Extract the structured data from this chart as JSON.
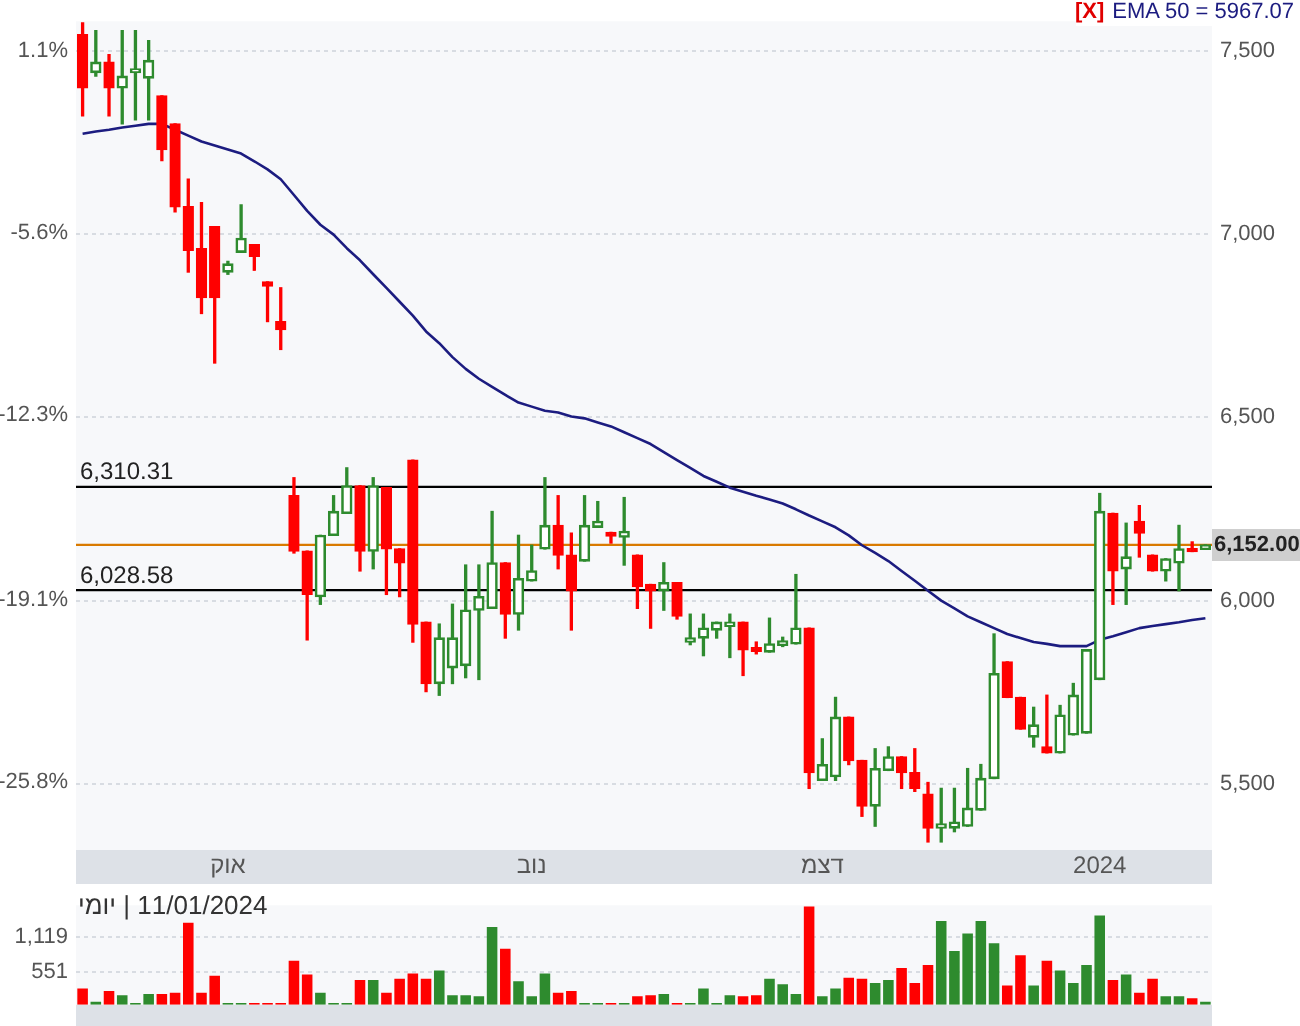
{
  "chart_data": [
    {
      "type": "candlestick",
      "categories": [
        null,
        null,
        null,
        null,
        null,
        null,
        null,
        null,
        null,
        null,
        null,
        "אוק",
        null,
        null,
        null,
        null,
        null,
        null,
        null,
        null,
        null,
        null,
        null,
        null,
        null,
        null,
        null,
        null,
        null,
        null,
        null,
        null,
        null,
        null,
        "נוב",
        null,
        null,
        null,
        null,
        null,
        null,
        null,
        null,
        null,
        null,
        null,
        null,
        null,
        null,
        null,
        null,
        null,
        null,
        null,
        null,
        null,
        "דצמ",
        null,
        null,
        null,
        null,
        null,
        null,
        null,
        null,
        null,
        null,
        null,
        null,
        null,
        null,
        null,
        null,
        null,
        null,
        null,
        null,
        "2024",
        null,
        null,
        null,
        null,
        null,
        null,
        null,
        null
      ],
      "ohlc": [
        [
          7543,
          7575,
          7322,
          7398
        ],
        [
          7440,
          7554,
          7430,
          7468
        ],
        [
          7468,
          7489,
          7322,
          7398
        ],
        [
          7398,
          7554,
          7300,
          7430
        ],
        [
          7440,
          7554,
          7311,
          7450
        ],
        [
          7425,
          7527,
          7311,
          7473
        ],
        [
          7376,
          7376,
          7200,
          7230
        ],
        [
          7300,
          7300,
          7060,
          7074
        ],
        [
          7074,
          7149,
          6896,
          6955
        ],
        [
          6960,
          7085,
          6783,
          6826
        ],
        [
          7020,
          7020,
          6648,
          6826
        ],
        [
          6896,
          6925,
          6890,
          6918
        ],
        [
          6950,
          7079,
          6950,
          6988
        ],
        [
          6971,
          6971,
          6901,
          6939
        ],
        [
          6869,
          6869,
          6761,
          6858
        ],
        [
          6761,
          6853,
          6685,
          6739
        ],
        [
          6286,
          6335,
          6130,
          6135
        ],
        [
          6135,
          6135,
          5893,
          6017
        ],
        [
          6011,
          6178,
          5990,
          6178
        ],
        [
          6178,
          6286,
          6178,
          6243
        ],
        [
          6238,
          6362,
          6238,
          6313
        ],
        [
          6313,
          6313,
          6081,
          6135
        ],
        [
          6135,
          6335,
          6087,
          6313
        ],
        [
          6308,
          6308,
          6017,
          6141
        ],
        [
          6141,
          6141,
          6011,
          6103
        ],
        [
          6383,
          6383,
          5887,
          5936
        ],
        [
          5941,
          5941,
          5752,
          5774
        ],
        [
          5774,
          5936,
          5742,
          5898
        ],
        [
          5817,
          5990,
          5774,
          5898
        ],
        [
          5823,
          6097,
          5790,
          5974
        ],
        [
          5974,
          6097,
          5785,
          6011
        ],
        [
          5979,
          6243,
          5979,
          6103
        ],
        [
          6103,
          6103,
          5898,
          5963
        ],
        [
          5963,
          6178,
          5920,
          6060
        ],
        [
          6054,
          6151,
          6054,
          6081
        ],
        [
          6141,
          6335,
          6141,
          6205
        ],
        [
          6205,
          6286,
          6087,
          6124
        ],
        [
          6124,
          6184,
          5920,
          6027
        ],
        [
          6108,
          6286,
          6108,
          6205
        ],
        [
          6200,
          6270,
          6200,
          6216
        ],
        [
          6186,
          6186,
          6157,
          6176
        ],
        [
          6173,
          6281,
          6097,
          6189
        ],
        [
          6124,
          6124,
          5979,
          6038
        ],
        [
          6044,
          6044,
          5925,
          6027
        ],
        [
          6027,
          6103,
          5974,
          6049
        ],
        [
          6049,
          6049,
          5950,
          5958
        ],
        [
          5887,
          5963,
          5880,
          5898
        ],
        [
          5898,
          5963,
          5850,
          5925
        ],
        [
          5920,
          5941,
          5898,
          5941
        ],
        [
          5930,
          5963,
          5845,
          5941
        ],
        [
          5941,
          5941,
          5796,
          5866
        ],
        [
          5872,
          5887,
          5855,
          5862
        ],
        [
          5860,
          5952,
          5860,
          5882
        ],
        [
          5878,
          5900,
          5875,
          5890
        ],
        [
          5882,
          6071,
          5882,
          5925
        ],
        [
          5925,
          5925,
          5488,
          5531
        ],
        [
          5510,
          5623,
          5510,
          5553
        ],
        [
          5520,
          5736,
          5510,
          5682
        ],
        [
          5682,
          5682,
          5553,
          5564
        ],
        [
          5564,
          5564,
          5412,
          5440
        ],
        [
          5440,
          5596,
          5385,
          5542
        ],
        [
          5537,
          5601,
          5537,
          5574
        ],
        [
          5574,
          5574,
          5488,
          5531
        ],
        [
          5531,
          5596,
          5480,
          5488
        ],
        [
          5472,
          5504,
          5342,
          5380
        ],
        [
          5380,
          5488,
          5342,
          5391
        ],
        [
          5380,
          5488,
          5370,
          5396
        ],
        [
          5385,
          5542,
          5385,
          5434
        ],
        [
          5429,
          5553,
          5429,
          5515
        ],
        [
          5515,
          5909,
          5515,
          5801
        ],
        [
          5833,
          5833,
          5736,
          5736
        ],
        [
          5736,
          5736,
          5650,
          5650
        ],
        [
          5628,
          5709,
          5601,
          5661
        ],
        [
          5601,
          5742,
          5585,
          5585
        ],
        [
          5585,
          5714,
          5585,
          5688
        ],
        [
          5634,
          5774,
          5634,
          5742
        ],
        [
          5639,
          5866,
          5639,
          5866
        ],
        [
          5785,
          6292,
          5785,
          6243
        ],
        [
          6238,
          6238,
          5990,
          6081
        ],
        [
          6087,
          6211,
          5990,
          6119
        ],
        [
          6216,
          6259,
          6119,
          6184
        ],
        [
          6124,
          6124,
          6081,
          6081
        ],
        [
          6081,
          6114,
          6054,
          6114
        ],
        [
          6103,
          6205,
          6027,
          6141
        ],
        [
          6142,
          6160,
          6134,
          6134
        ],
        [
          6140,
          6152,
          6140,
          6152
        ]
      ],
      "colors": [
        "#ff0000",
        "#2e8b2e",
        "#ff0000",
        "#2e8b2e",
        "#2e8b2e",
        "#2e8b2e",
        "#ff0000",
        "#ff0000",
        "#ff0000",
        "#ff0000",
        "#ff0000",
        "#2e8b2e",
        "#2e8b2e",
        "#ff0000",
        "#ff0000",
        "#ff0000",
        "#ff0000",
        "#ff0000",
        "#2e8b2e",
        "#2e8b2e",
        "#2e8b2e",
        "#ff0000",
        "#2e8b2e",
        "#ff0000",
        "#ff0000",
        "#ff0000",
        "#ff0000",
        "#2e8b2e",
        "#2e8b2e",
        "#2e8b2e",
        "#2e8b2e",
        "#2e8b2e",
        "#ff0000",
        "#2e8b2e",
        "#2e8b2e",
        "#2e8b2e",
        "#ff0000",
        "#ff0000",
        "#2e8b2e",
        "#2e8b2e",
        "#ff0000",
        "#2e8b2e",
        "#ff0000",
        "#ff0000",
        "#2e8b2e",
        "#ff0000",
        "#2e8b2e",
        "#2e8b2e",
        "#2e8b2e",
        "#2e8b2e",
        "#ff0000",
        "#ff0000",
        "#2e8b2e",
        "#2e8b2e",
        "#2e8b2e",
        "#ff0000",
        "#2e8b2e",
        "#2e8b2e",
        "#ff0000",
        "#ff0000",
        "#2e8b2e",
        "#2e8b2e",
        "#ff0000",
        "#ff0000",
        "#ff0000",
        "#2e8b2e",
        "#2e8b2e",
        "#2e8b2e",
        "#2e8b2e",
        "#2e8b2e",
        "#ff0000",
        "#ff0000",
        "#2e8b2e",
        "#ff0000",
        "#2e8b2e",
        "#2e8b2e",
        "#2e8b2e",
        "#2e8b2e",
        "#ff0000",
        "#2e8b2e",
        "#ff0000",
        "#ff0000",
        "#2e8b2e",
        "#2e8b2e",
        "#ff0000",
        "#2e8b2e"
      ],
      "series": [
        {
          "type": "line",
          "name": "EMA 50 = 5967.07",
          "color": "#1c1c80",
          "values": [
            7273,
            7279,
            7284,
            7290,
            7295,
            7300,
            7300,
            7284,
            7268,
            7252,
            7241,
            7230,
            7219,
            7198,
            7176,
            7149,
            7106,
            7063,
            7025,
            6998,
            6961,
            6928,
            6890,
            6853,
            6815,
            6777,
            6734,
            6702,
            6664,
            6632,
            6605,
            6583,
            6561,
            6540,
            6529,
            6518,
            6513,
            6502,
            6497,
            6486,
            6475,
            6459,
            6443,
            6427,
            6405,
            6383,
            6362,
            6340,
            6324,
            6308,
            6297,
            6286,
            6276,
            6265,
            6249,
            6232,
            6216,
            6200,
            6178,
            6151,
            6130,
            6108,
            6081,
            6054,
            6027,
            6000,
            5979,
            5957,
            5941,
            5925,
            5909,
            5898,
            5887,
            5882,
            5876,
            5876,
            5876,
            5893,
            5903,
            5914,
            5925,
            5931,
            5936,
            5941,
            5947,
            5952
          ]
        }
      ],
      "legend": "top right",
      "legend_title": "[X]",
      "marker": "none",
      "grid": "y",
      "ylim": [
        5320,
        7580
      ],
      "yticks": [
        {
          "value": 5500,
          "label": "5,500"
        },
        {
          "value": 6000,
          "label": "6,000"
        },
        {
          "value": 6500,
          "label": "6,500"
        },
        {
          "value": 7000,
          "label": "7,000"
        },
        {
          "value": 7500,
          "label": "7,500"
        }
      ],
      "y2lim": [
        -28.29,
        2.18
      ],
      "y2ticks": [
        {
          "value": -25.8,
          "label": "-25.8%"
        },
        {
          "value": -19.1,
          "label": "-19.1%"
        },
        {
          "value": -12.3,
          "label": "-12.3%"
        },
        {
          "value": -5.6,
          "label": "-5.6%"
        },
        {
          "value": 1.1,
          "label": "1.1%"
        }
      ],
      "ref_lines": [
        {
          "axis": "y",
          "value": 6310.31,
          "label": "6,310.31"
        },
        {
          "axis": "y",
          "value": 6028.58,
          "label": "6,028.58"
        },
        {
          "axis": "y",
          "value": 6152,
          "label": "6,152.00",
          "color": "#d97a00"
        }
      ]
    },
    {
      "type": "bar",
      "categories": [
        null,
        null,
        null,
        null,
        null,
        null,
        null,
        null,
        null,
        null,
        null,
        null,
        null,
        null,
        null,
        null,
        null,
        null,
        null,
        null,
        null,
        null,
        null,
        null,
        null,
        null,
        null,
        null,
        null,
        null,
        null,
        null,
        null,
        null,
        null,
        null,
        null,
        null,
        null,
        null,
        null,
        null,
        null,
        null,
        null,
        null,
        null,
        null,
        null,
        null,
        null,
        null,
        null,
        null,
        null,
        null,
        null,
        null,
        null,
        null,
        null,
        null,
        null,
        null,
        null,
        null,
        null,
        null,
        null,
        null,
        null,
        null,
        null,
        null,
        null,
        null,
        null,
        null,
        null,
        null,
        null,
        null,
        null,
        null,
        null,
        null
      ],
      "values": [
        270,
        50,
        230,
        160,
        30,
        180,
        180,
        200,
        1360,
        200,
        480,
        30,
        30,
        30,
        30,
        30,
        730,
        500,
        200,
        30,
        30,
        410,
        410,
        200,
        430,
        520,
        430,
        570,
        160,
        160,
        140,
        1290,
        930,
        390,
        140,
        520,
        200,
        230,
        30,
        30,
        30,
        30,
        140,
        160,
        180,
        30,
        30,
        270,
        30,
        160,
        140,
        160,
        430,
        340,
        180,
        1630,
        140,
        270,
        450,
        430,
        360,
        410,
        610,
        360,
        660,
        1390,
        890,
        1180,
        1390,
        1020,
        320,
        820,
        320,
        730,
        570,
        360,
        660,
        1480,
        410,
        500,
        200,
        430,
        140,
        140,
        110,
        50
      ],
      "colors": [
        "#ff0000",
        "#2e8b2e",
        "#ff0000",
        "#2e8b2e",
        "#2e8b2e",
        "#2e8b2e",
        "#ff0000",
        "#ff0000",
        "#ff0000",
        "#ff0000",
        "#ff0000",
        "#2e8b2e",
        "#2e8b2e",
        "#ff0000",
        "#ff0000",
        "#ff0000",
        "#ff0000",
        "#ff0000",
        "#2e8b2e",
        "#2e8b2e",
        "#2e8b2e",
        "#ff0000",
        "#2e8b2e",
        "#ff0000",
        "#ff0000",
        "#ff0000",
        "#ff0000",
        "#2e8b2e",
        "#2e8b2e",
        "#2e8b2e",
        "#2e8b2e",
        "#2e8b2e",
        "#ff0000",
        "#2e8b2e",
        "#2e8b2e",
        "#2e8b2e",
        "#ff0000",
        "#ff0000",
        "#2e8b2e",
        "#2e8b2e",
        "#ff0000",
        "#2e8b2e",
        "#ff0000",
        "#ff0000",
        "#2e8b2e",
        "#ff0000",
        "#2e8b2e",
        "#2e8b2e",
        "#2e8b2e",
        "#2e8b2e",
        "#ff0000",
        "#ff0000",
        "#2e8b2e",
        "#2e8b2e",
        "#2e8b2e",
        "#ff0000",
        "#2e8b2e",
        "#2e8b2e",
        "#ff0000",
        "#ff0000",
        "#2e8b2e",
        "#2e8b2e",
        "#ff0000",
        "#ff0000",
        "#ff0000",
        "#2e8b2e",
        "#2e8b2e",
        "#2e8b2e",
        "#2e8b2e",
        "#2e8b2e",
        "#ff0000",
        "#ff0000",
        "#2e8b2e",
        "#ff0000",
        "#2e8b2e",
        "#2e8b2e",
        "#2e8b2e",
        "#2e8b2e",
        "#ff0000",
        "#2e8b2e",
        "#ff0000",
        "#ff0000",
        "#2e8b2e",
        "#2e8b2e",
        "#ff0000",
        "#2e8b2e"
      ],
      "ylim": [
        0,
        1650
      ],
      "yticks": [
        551,
        {
          "value": 1119,
          "label": "1,119"
        }
      ],
      "grid": "y",
      "tick_labels": "y",
      "annotations": [
        "11/01/2024 | יומי"
      ]
    }
  ]
}
